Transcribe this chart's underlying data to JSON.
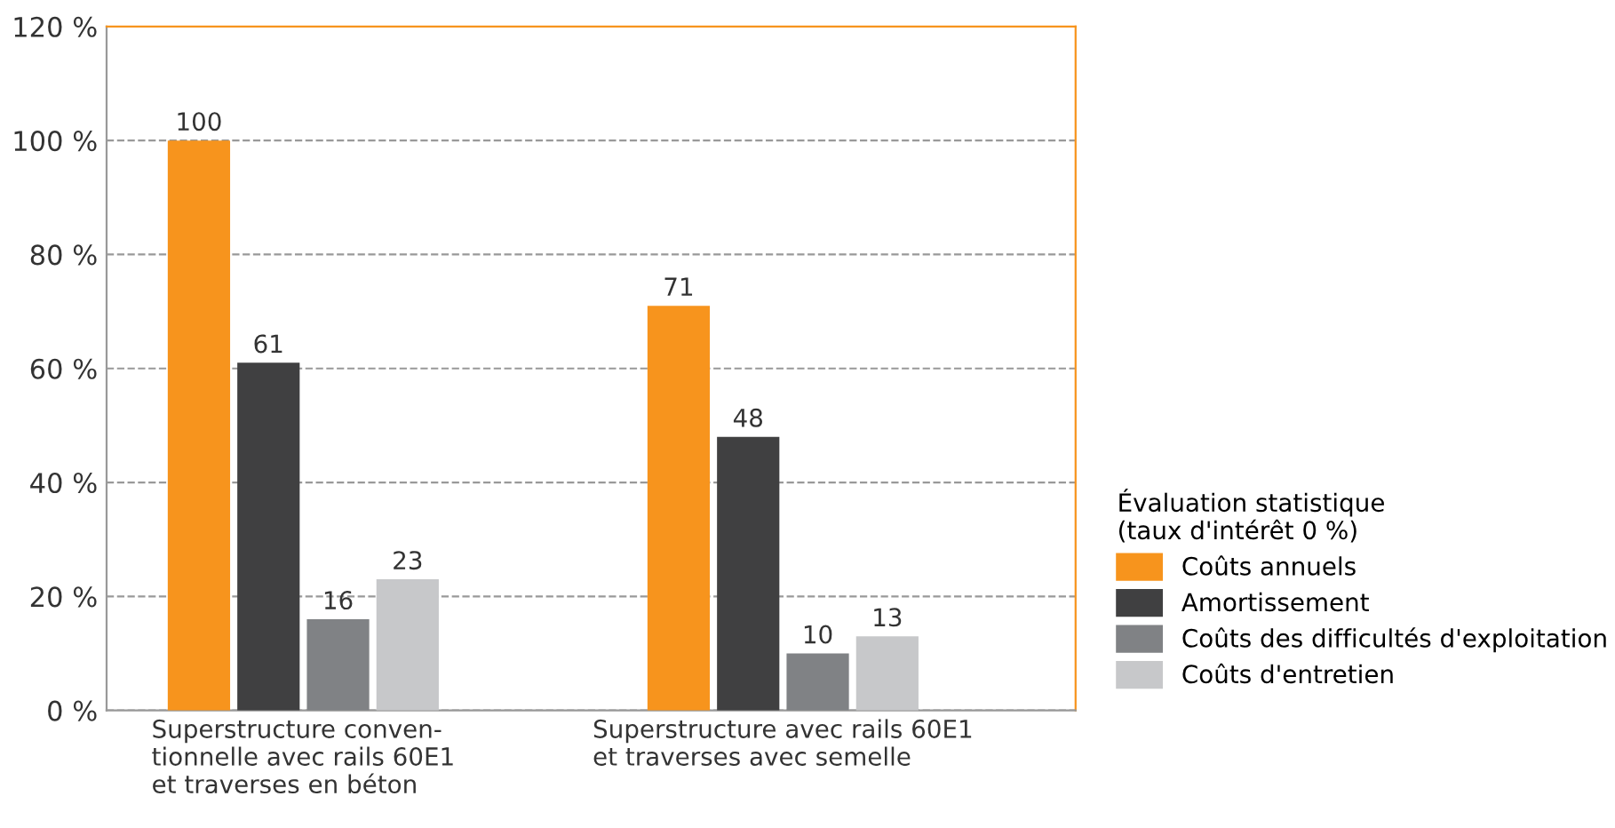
{
  "chart_data": {
    "type": "bar",
    "categories": [
      "Superstructure conven-\ntionnelle avec rails 60E1\net traverses en béton",
      "Superstructure avec rails 60E1\net traverses avec semelle"
    ],
    "series": [
      {
        "name": "Coûts annuels",
        "color": "#f7941d",
        "values": [
          100,
          71
        ]
      },
      {
        "name": "Amortissement",
        "color": "#404041",
        "values": [
          61,
          48
        ]
      },
      {
        "name": "Coûts des difficultés d'exploitation",
        "color": "#808285",
        "values": [
          16,
          10
        ]
      },
      {
        "name": "Coûts d'entretien",
        "color": "#c7c8ca",
        "values": [
          23,
          13
        ]
      }
    ],
    "legend_title": "Évaluation statistique\n(taux d'intérêt 0 %)",
    "ylim": [
      0,
      120
    ],
    "yticks": [
      {
        "value": 0,
        "label": "0 %"
      },
      {
        "value": 20,
        "label": "20 %"
      },
      {
        "value": 40,
        "label": "40 %"
      },
      {
        "value": 60,
        "label": "60 %"
      },
      {
        "value": 80,
        "label": "80 %"
      },
      {
        "value": 100,
        "label": "100 %"
      },
      {
        "value": 120,
        "label": "120 %"
      }
    ],
    "grid": "y",
    "legend": "right",
    "data_labels": true
  }
}
